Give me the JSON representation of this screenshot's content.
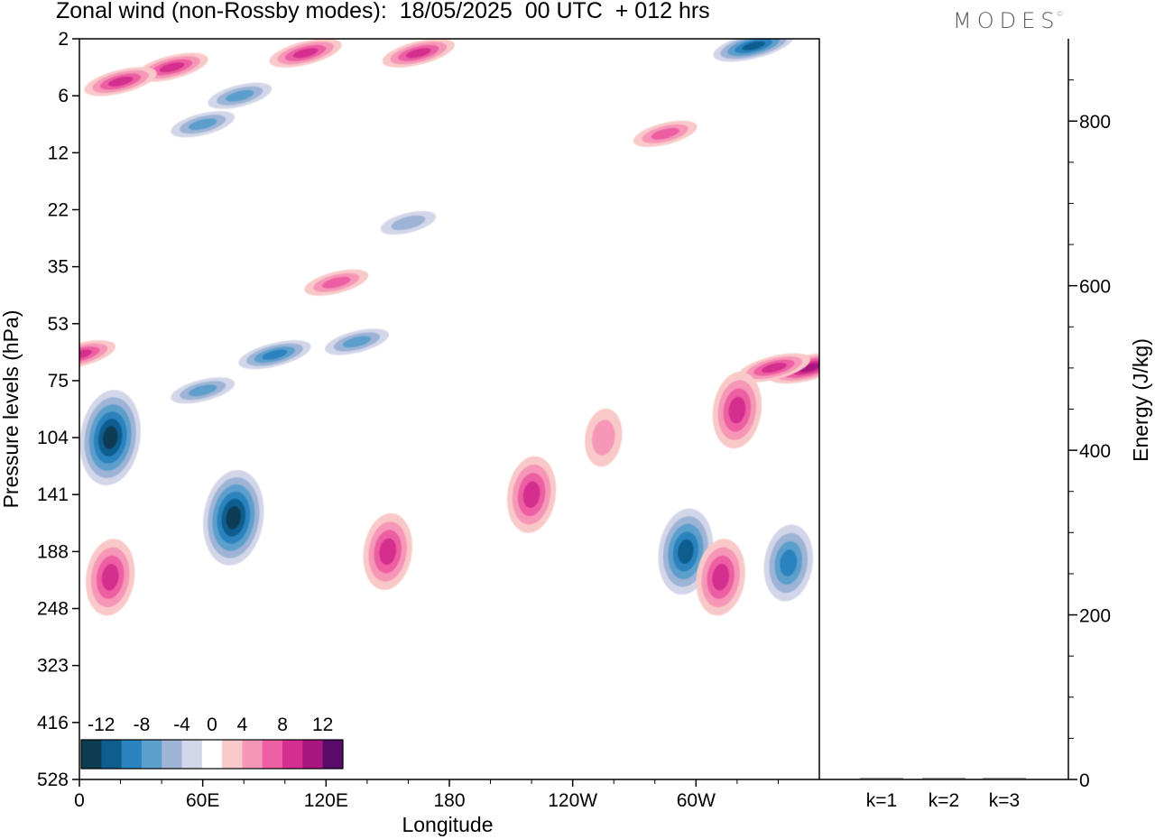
{
  "title": "Zonal wind (non-Rossby modes):  18/05/2025  00 UTC  + 012 hrs",
  "brand": "MODES",
  "brand_mark": "©",
  "chart_data": [
    {
      "type": "heatmap",
      "variable": "Zonal wind (non-Rossby modes)",
      "xlabel": "Longitude",
      "ylabel": "Pressure levels (hPa)",
      "x_ticks": [
        "0",
        "60E",
        "120E",
        "180",
        "120W",
        "60W"
      ],
      "x_range_deg": [
        0,
        360
      ],
      "y_ticks": [
        "2",
        "6",
        "12",
        "22",
        "35",
        "53",
        "75",
        "104",
        "141",
        "188",
        "248",
        "323",
        "416",
        "528"
      ],
      "colorbar": {
        "labels": [
          "-12",
          "-8",
          "-4",
          "0",
          "4",
          "8",
          "12"
        ],
        "levels": [
          -14,
          -12,
          -10,
          -8,
          -6,
          -4,
          -2,
          2,
          4,
          6,
          8,
          10,
          12,
          14
        ],
        "colors": [
          "#0d3b52",
          "#0f5d8f",
          "#2a82be",
          "#5b9fcc",
          "#9db4d6",
          "#d3d6e8",
          "#ffffff",
          "#f9c9c9",
          "#f697b8",
          "#ed5fa2",
          "#d42f8f",
          "#a8167f",
          "#5a0a6b"
        ]
      },
      "features": [
        {
          "lon": 15,
          "lev": 104,
          "value": -12
        },
        {
          "lon": 75,
          "lev": 160,
          "value": -12
        },
        {
          "lon": 150,
          "lev": 188,
          "value": 8
        },
        {
          "lon": 220,
          "lev": 141,
          "value": 8
        },
        {
          "lon": 295,
          "lev": 188,
          "value": -10
        },
        {
          "lon": 312,
          "lev": 215,
          "value": 8
        },
        {
          "lon": 345,
          "lev": 200,
          "value": -8
        },
        {
          "lon": 15,
          "lev": 215,
          "value": 8
        },
        {
          "lon": 355,
          "lev": 70,
          "value": 10
        },
        {
          "lon": 338,
          "lev": 70,
          "value": 8
        },
        {
          "lon": 320,
          "lev": 90,
          "value": 8
        },
        {
          "lon": 255,
          "lev": 104,
          "value": 4
        },
        {
          "lon": 95,
          "lev": 65,
          "value": -8
        },
        {
          "lon": 135,
          "lev": 60,
          "value": -6
        },
        {
          "lon": 60,
          "lev": 80,
          "value": -6
        },
        {
          "lon": 45,
          "lev": 4,
          "value": 8
        },
        {
          "lon": 20,
          "lev": 5,
          "value": 8
        },
        {
          "lon": 110,
          "lev": 3,
          "value": 8
        },
        {
          "lon": 165,
          "lev": 3,
          "value": 8
        },
        {
          "lon": 328,
          "lev": 2.5,
          "value": -10
        },
        {
          "lon": 60,
          "lev": 9,
          "value": -6
        },
        {
          "lon": 78,
          "lev": 6,
          "value": -6
        },
        {
          "lon": 0,
          "lev": 65,
          "value": 8
        },
        {
          "lon": 125,
          "lev": 40,
          "value": 6
        },
        {
          "lon": 160,
          "lev": 25,
          "value": -4
        },
        {
          "lon": 285,
          "lev": 10,
          "value": 6
        }
      ]
    },
    {
      "type": "bar",
      "ylabel": "Energy (J/kg)",
      "categories": [
        "k=1",
        "k=2",
        "k=3"
      ],
      "values": [
        0.8,
        0.6,
        0.5
      ],
      "ylim": [
        0,
        900
      ],
      "y_ticks": [
        "0",
        "200",
        "400",
        "600",
        "800"
      ]
    }
  ]
}
